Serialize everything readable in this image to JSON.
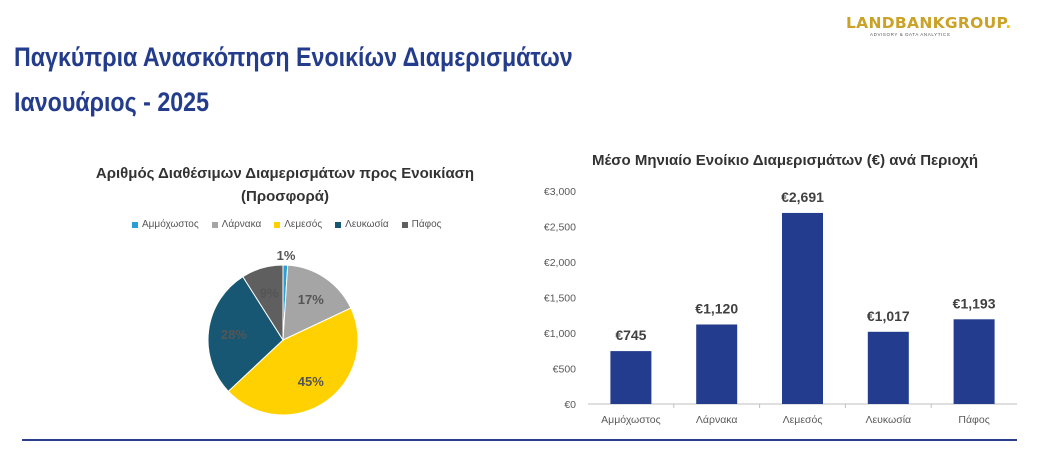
{
  "header": {
    "title_line1": "Παγκύπρια Ανασκόπηση Ενοικίων Διαμερισμάτων",
    "title_line2": "Ιανουάριος - 2025",
    "logo_text": "LANDBANKGROUP",
    "logo_dot": ".",
    "logo_subtext": "ADVISORY & DATA ANALYTICS"
  },
  "colors": {
    "title": "#243c8c",
    "bar": "#233c8e",
    "pie": [
      "#2a9fd6",
      "#a5a5a5",
      "#ffd100",
      "#175773",
      "#5f5f5f"
    ]
  },
  "chart_data": [
    {
      "type": "pie",
      "title_line1": "Αριθμός Διαθέσιμων Διαμερισμάτων προς Ενοικίαση",
      "title_line2": "(Προσφορά)",
      "categories": [
        "Αμμόχωστος",
        "Λάρνακα",
        "Λεμεσός",
        "Λευκωσία",
        "Πάφος"
      ],
      "values": [
        1,
        17,
        45,
        28,
        9
      ],
      "labels": [
        "1%",
        "17%",
        "45%",
        "28%",
        "9%"
      ],
      "legend_position": "top"
    },
    {
      "type": "bar",
      "title": "Μέσο Μηνιαίο Ενοίκιο Διαμερισμάτων (€) ανά Περιοχή",
      "categories": [
        "Αμμόχωστος",
        "Λάρνακα",
        "Λεμεσός",
        "Λευκωσία",
        "Πάφος"
      ],
      "values": [
        745,
        1120,
        2691,
        1017,
        1193
      ],
      "value_labels": [
        "€745",
        "€1,120",
        "€2,691",
        "€1,017",
        "€1,193"
      ],
      "ylim": [
        0,
        3000
      ],
      "yticks": [
        0,
        500,
        1000,
        1500,
        2000,
        2500,
        3000
      ],
      "ytick_labels": [
        "€0",
        "€500",
        "€1,000",
        "€1,500",
        "€2,000",
        "€2,500",
        "€3,000"
      ],
      "grid": false
    }
  ]
}
